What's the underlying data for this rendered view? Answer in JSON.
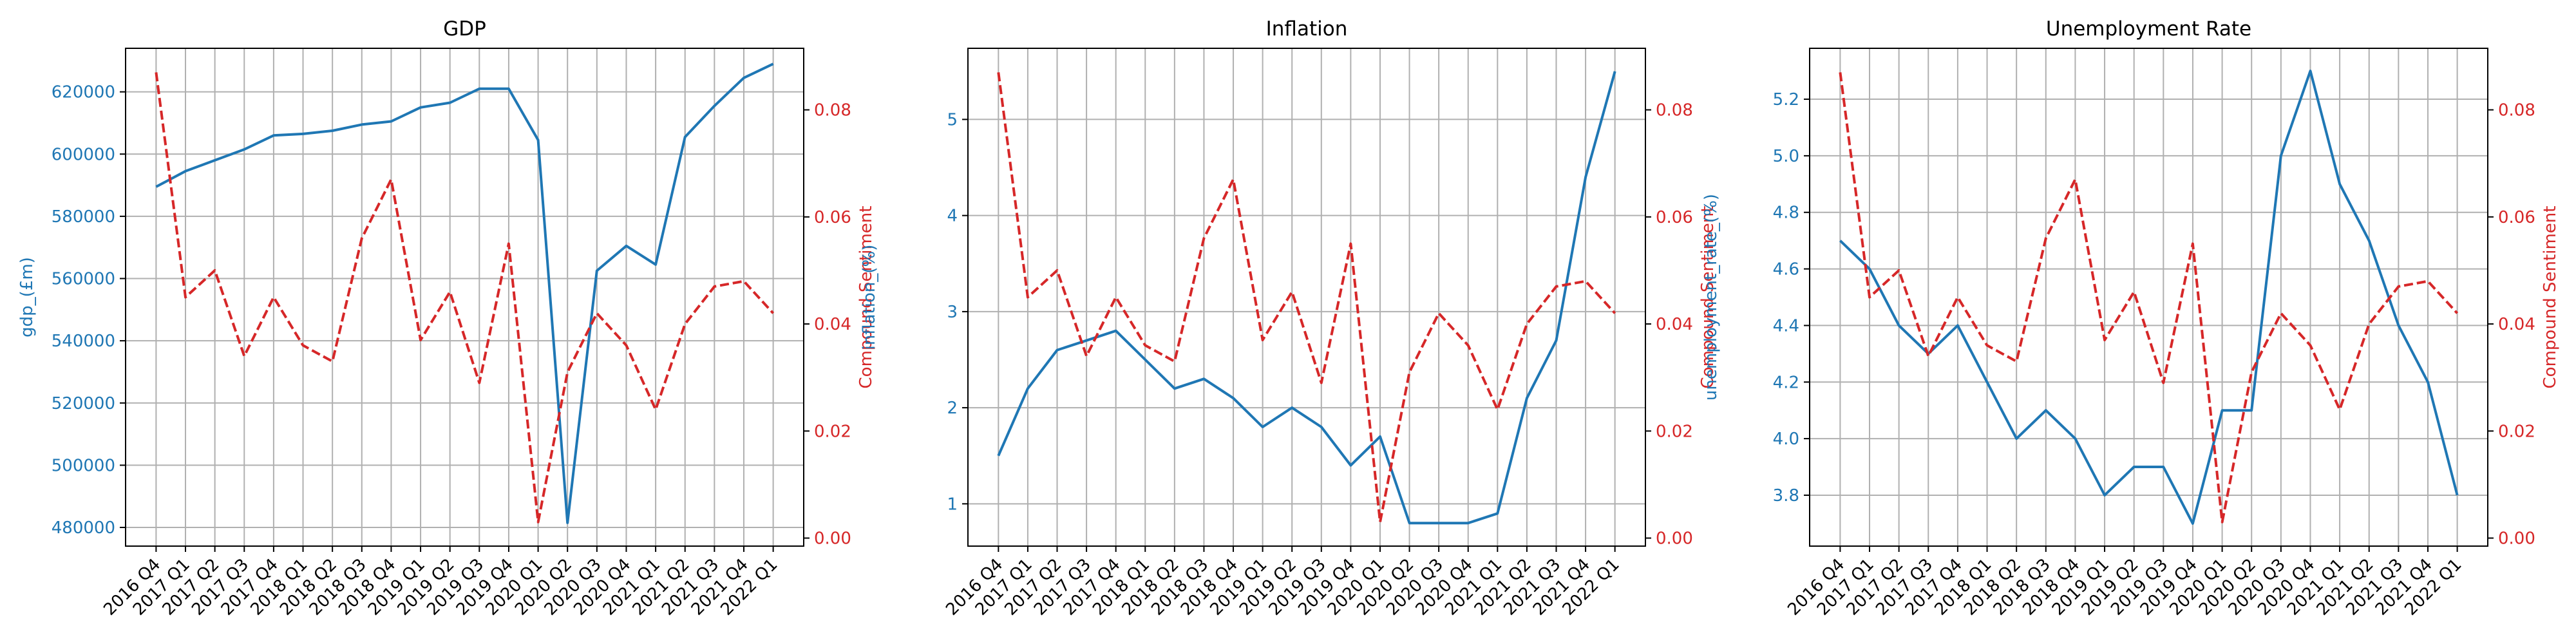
{
  "chart_data": [
    {
      "type": "line",
      "title": "GDP",
      "xlabel": "",
      "ylabel": "gdp_(£m)",
      "y2label": "Compound Sentiment",
      "categories": [
        "2016 Q4",
        "2017 Q1",
        "2017 Q2",
        "2017 Q3",
        "2017 Q4",
        "2018 Q1",
        "2018 Q2",
        "2018 Q3",
        "2018 Q4",
        "2019 Q1",
        "2019 Q2",
        "2019 Q3",
        "2019 Q4",
        "2020 Q1",
        "2020 Q2",
        "2020 Q3",
        "2020 Q4",
        "2021 Q1",
        "2021 Q2",
        "2021 Q3",
        "2021 Q4",
        "2022 Q1"
      ],
      "series": [
        {
          "axis": "left",
          "color": "#1f77b4",
          "style": "solid",
          "values": [
            589500,
            594500,
            598000,
            601500,
            606000,
            606500,
            607500,
            609500,
            610500,
            615000,
            616500,
            621000,
            621000,
            604500,
            481500,
            562500,
            570500,
            564500,
            605500,
            615500,
            624500,
            629000
          ]
        },
        {
          "axis": "right",
          "color": "#d62728",
          "style": "dashed",
          "values": [
            0.087,
            0.045,
            0.05,
            0.034,
            0.045,
            0.036,
            0.033,
            0.056,
            0.067,
            0.037,
            0.046,
            0.029,
            0.055,
            0.003,
            0.031,
            0.042,
            0.036,
            0.024,
            0.04,
            0.047,
            0.048,
            0.042
          ]
        }
      ],
      "ylim": [
        474000,
        634000
      ],
      "y2lim": [
        -0.0015,
        0.0915
      ],
      "yticks": [
        480000,
        500000,
        520000,
        540000,
        560000,
        580000,
        600000,
        620000
      ],
      "y2ticks": [
        0.0,
        0.02,
        0.04,
        0.06,
        0.08
      ],
      "y2decimals": 2,
      "ydecimals": 0,
      "grid": true
    },
    {
      "type": "line",
      "title": "Inflation",
      "xlabel": "",
      "ylabel": "inflation_(%)",
      "y2label": "Compound Sentiment",
      "categories": [
        "2016 Q4",
        "2017 Q1",
        "2017 Q2",
        "2017 Q3",
        "2017 Q4",
        "2018 Q1",
        "2018 Q2",
        "2018 Q3",
        "2018 Q4",
        "2019 Q1",
        "2019 Q2",
        "2019 Q3",
        "2019 Q4",
        "2020 Q1",
        "2020 Q2",
        "2020 Q3",
        "2020 Q4",
        "2021 Q1",
        "2021 Q2",
        "2021 Q3",
        "2021 Q4",
        "2022 Q1"
      ],
      "series": [
        {
          "axis": "left",
          "color": "#1f77b4",
          "style": "solid",
          "values": [
            1.5,
            2.2,
            2.6,
            2.7,
            2.8,
            2.5,
            2.2,
            2.3,
            2.1,
            1.8,
            2.0,
            1.8,
            1.4,
            1.7,
            0.8,
            0.8,
            0.8,
            0.9,
            2.1,
            2.7,
            4.4,
            5.5
          ]
        },
        {
          "axis": "right",
          "color": "#d62728",
          "style": "dashed",
          "values": [
            0.087,
            0.045,
            0.05,
            0.034,
            0.045,
            0.036,
            0.033,
            0.056,
            0.067,
            0.037,
            0.046,
            0.029,
            0.055,
            0.003,
            0.031,
            0.042,
            0.036,
            0.024,
            0.04,
            0.047,
            0.048,
            0.042
          ]
        }
      ],
      "ylim": [
        0.56,
        5.74
      ],
      "y2lim": [
        -0.0015,
        0.0915
      ],
      "yticks": [
        1,
        2,
        3,
        4,
        5
      ],
      "y2ticks": [
        0.0,
        0.02,
        0.04,
        0.06,
        0.08
      ],
      "y2decimals": 2,
      "ydecimals": 0,
      "grid": true
    },
    {
      "type": "line",
      "title": "Unemployment Rate",
      "xlabel": "",
      "ylabel": "unemployment_rate_(%)",
      "y2label": "Compound Sentiment",
      "categories": [
        "2016 Q4",
        "2017 Q1",
        "2017 Q2",
        "2017 Q3",
        "2017 Q4",
        "2018 Q1",
        "2018 Q2",
        "2018 Q3",
        "2018 Q4",
        "2019 Q1",
        "2019 Q2",
        "2019 Q3",
        "2019 Q4",
        "2020 Q1",
        "2020 Q2",
        "2020 Q3",
        "2020 Q4",
        "2021 Q1",
        "2021 Q2",
        "2021 Q3",
        "2021 Q4",
        "2022 Q1"
      ],
      "series": [
        {
          "axis": "left",
          "color": "#1f77b4",
          "style": "solid",
          "values": [
            4.7,
            4.6,
            4.4,
            4.3,
            4.4,
            4.2,
            4.0,
            4.1,
            4.0,
            3.8,
            3.9,
            3.9,
            3.7,
            4.1,
            4.1,
            5.0,
            5.3,
            4.9,
            4.7,
            4.4,
            4.2,
            3.8
          ]
        },
        {
          "axis": "right",
          "color": "#d62728",
          "style": "dashed",
          "values": [
            0.087,
            0.045,
            0.05,
            0.034,
            0.045,
            0.036,
            0.033,
            0.056,
            0.067,
            0.037,
            0.046,
            0.029,
            0.055,
            0.003,
            0.031,
            0.042,
            0.036,
            0.024,
            0.04,
            0.047,
            0.048,
            0.042
          ]
        }
      ],
      "ylim": [
        3.62,
        5.38
      ],
      "y2lim": [
        -0.0015,
        0.0915
      ],
      "yticks": [
        3.8,
        4.0,
        4.2,
        4.4,
        4.6,
        4.8,
        5.0,
        5.2
      ],
      "y2ticks": [
        0.0,
        0.02,
        0.04,
        0.06,
        0.08
      ],
      "y2decimals": 2,
      "ydecimals": 1,
      "grid": true
    }
  ]
}
